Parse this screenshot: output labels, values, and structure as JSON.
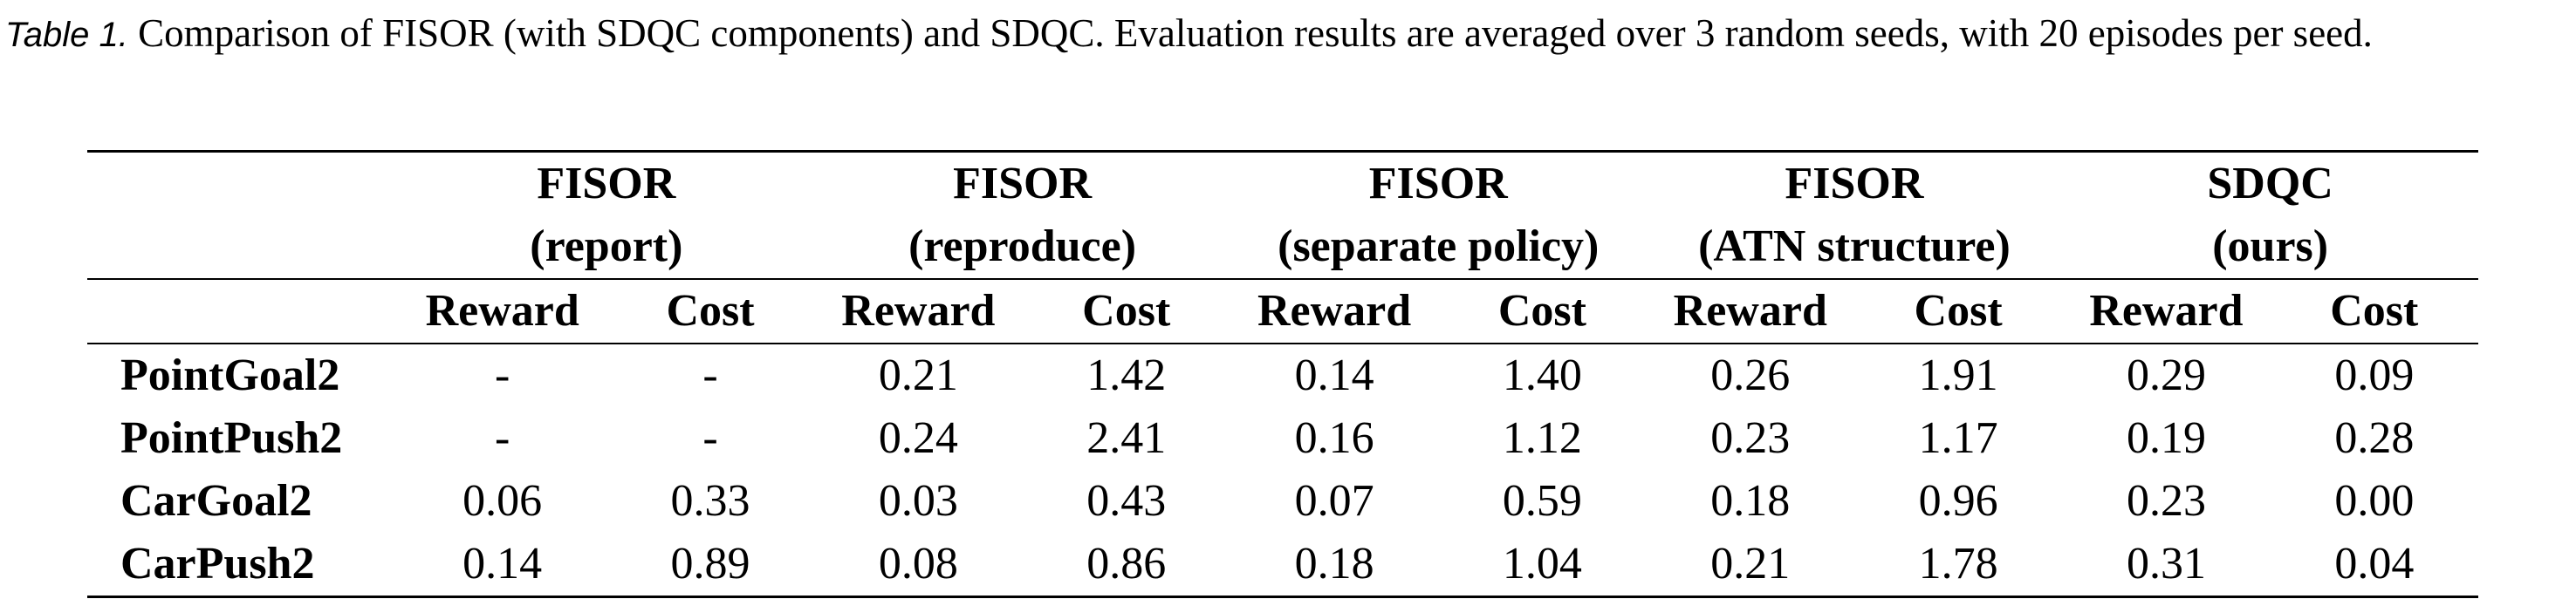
{
  "caption": {
    "label": "Table 1.",
    "text": " Comparison of FISOR (with SDQC components) and SDQC. Evaluation results are averaged over 3 random seeds, with 20 episodes per seed."
  },
  "table": {
    "groups": [
      {
        "line1": "FISOR",
        "line2": "(report)"
      },
      {
        "line1": "FISOR",
        "line2": "(reproduce)"
      },
      {
        "line1": "FISOR",
        "line2": "(separate policy)"
      },
      {
        "line1": "FISOR",
        "line2": "(ATN structure)"
      },
      {
        "line1": "SDQC",
        "line2": "(ours)"
      }
    ],
    "subheaders": {
      "reward": "Reward",
      "cost": "Cost"
    },
    "rows": [
      {
        "name": "PointGoal2",
        "values": [
          "-",
          "-",
          "0.21",
          "1.42",
          "0.14",
          "1.40",
          "0.26",
          "1.91",
          "0.29",
          "0.09"
        ]
      },
      {
        "name": "PointPush2",
        "values": [
          "-",
          "-",
          "0.24",
          "2.41",
          "0.16",
          "1.12",
          "0.23",
          "1.17",
          "0.19",
          "0.28"
        ]
      },
      {
        "name": "CarGoal2",
        "values": [
          "0.06",
          "0.33",
          "0.03",
          "0.43",
          "0.07",
          "0.59",
          "0.18",
          "0.96",
          "0.23",
          "0.00"
        ]
      },
      {
        "name": "CarPush2",
        "values": [
          "0.14",
          "0.89",
          "0.08",
          "0.86",
          "0.18",
          "1.04",
          "0.21",
          "1.78",
          "0.31",
          "0.04"
        ]
      }
    ]
  }
}
